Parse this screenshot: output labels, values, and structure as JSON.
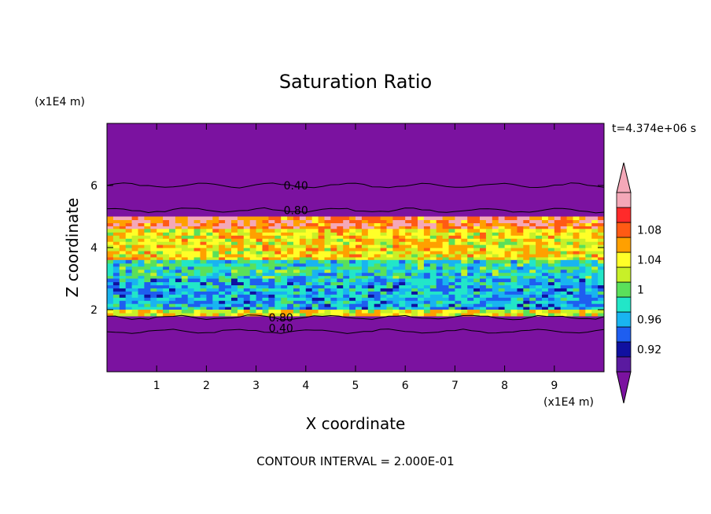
{
  "chart_data": {
    "type": "heatmap",
    "title": "Saturation Ratio",
    "xlabel": "X coordinate",
    "ylabel": "Z coordinate",
    "x_unit": "(x1E4 m)",
    "y_unit": "(x1E4 m)",
    "time_label": "t=4.374e+06 s",
    "footer": "CONTOUR INTERVAL = 2.000E-01",
    "xlim": [
      0,
      10
    ],
    "ylim": [
      0,
      8
    ],
    "x_ticks": [
      "1",
      "2",
      "3",
      "4",
      "5",
      "6",
      "7",
      "8",
      "9"
    ],
    "y_ticks": [
      "2",
      "4",
      "6"
    ],
    "grid": false,
    "colorbar": {
      "position": "right",
      "labels": [
        "0.92",
        "0.96",
        "1",
        "1.04",
        "1.08"
      ],
      "levels": [
        0.9,
        0.92,
        0.94,
        0.96,
        0.98,
        1.0,
        1.02,
        1.04,
        1.06,
        1.08,
        1.1
      ],
      "colors": [
        "#5a1aa0",
        "#1010a0",
        "#1e5ef0",
        "#19b4f0",
        "#22e6c8",
        "#5ae05a",
        "#c8f028",
        "#ffff28",
        "#ffa000",
        "#ff5a14",
        "#ff2a2a",
        "#f4a8b8"
      ],
      "under_color": "#7b12a0",
      "over_color": "#f4a8b8"
    },
    "background_color": "#7b12a0",
    "contour_labels": [
      "0.40",
      "0.80",
      "0.80",
      "0.40"
    ],
    "bands": [
      {
        "z_min": 4.6,
        "z_max": 5.0,
        "dominant": "pink/red",
        "approx_value": 1.09
      },
      {
        "z_min": 3.6,
        "z_max": 4.6,
        "dominant": "orange/yellow",
        "approx_value": 1.05
      },
      {
        "z_min": 3.0,
        "z_max": 3.6,
        "dominant": "green/cyan",
        "approx_value": 0.99
      },
      {
        "z_min": 2.0,
        "z_max": 3.0,
        "dominant": "cyan/blue mixed",
        "approx_value": 0.97
      },
      {
        "z_min": 1.8,
        "z_max": 2.0,
        "dominant": "orange/red",
        "approx_value": 1.04
      }
    ]
  }
}
